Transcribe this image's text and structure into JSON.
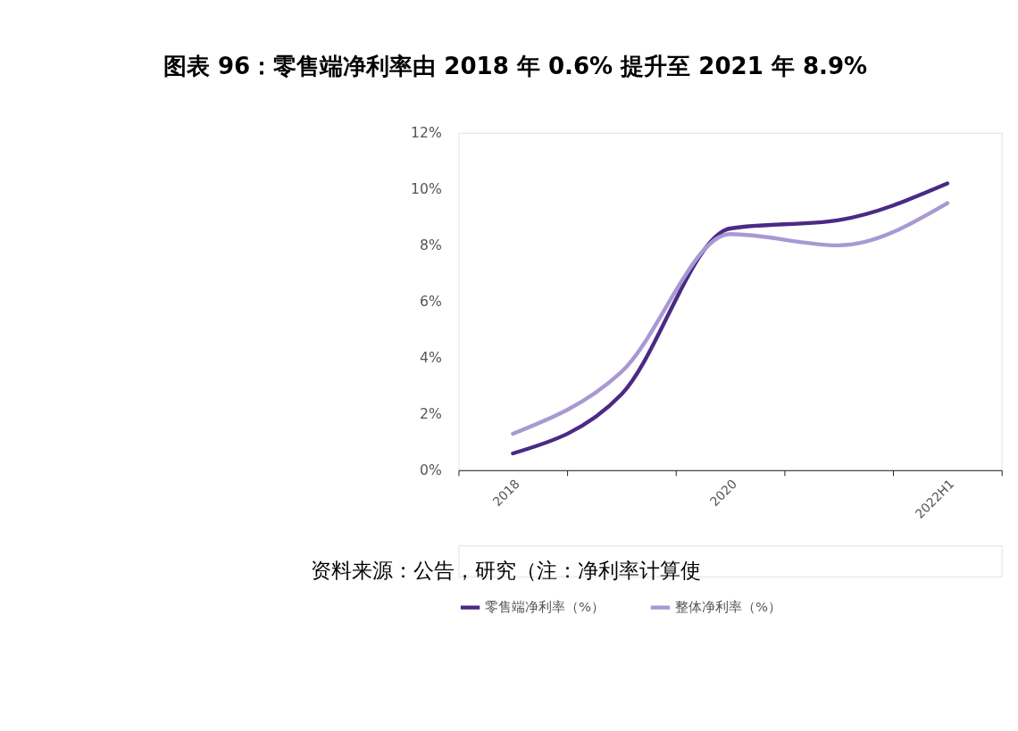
{
  "chart_data": {
    "type": "line",
    "title": "图表 96：零售端净利率由 2018 年 0.6% 提升至 2021 年 8.9%",
    "categories": [
      "2018",
      null,
      "2020",
      null,
      "2022H1"
    ],
    "series": [
      {
        "name": "零售端净利率（%）",
        "color": "#4b2a86",
        "values": [
          0.6,
          2.7,
          8.6,
          8.9,
          10.2
        ]
      },
      {
        "name": "整体净利率（%）",
        "color": "#a899d3",
        "values": [
          1.3,
          3.5,
          8.4,
          8.0,
          9.5
        ]
      }
    ],
    "ylim": [
      0,
      12
    ],
    "yticks": [
      {
        "value": 0,
        "label": "0%"
      },
      {
        "value": 2,
        "label": "2%"
      },
      {
        "value": 4,
        "label": "4%"
      },
      {
        "value": 6,
        "label": "6%"
      },
      {
        "value": 8,
        "label": "8%"
      },
      {
        "value": 10,
        "label": "10%"
      },
      {
        "value": 12,
        "label": "12%"
      }
    ],
    "grid": false,
    "legend": "bottom",
    "marker": "none",
    "line_style": "solid",
    "annotations": [
      "资料来源：公告，研究（注：净利率计算使"
    ]
  }
}
